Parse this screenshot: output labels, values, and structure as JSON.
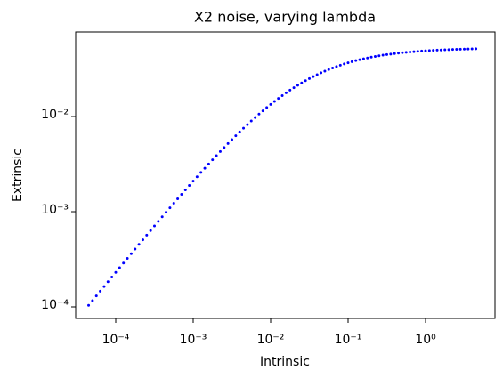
{
  "chart_data": {
    "type": "scatter",
    "title": "X2 noise, varying lambda",
    "xlabel": "Intrinsic",
    "ylabel": "Extrinsic",
    "xscale": "log",
    "yscale": "log",
    "color": "#0000ff",
    "xlim": [
      3.04e-05,
      7.88
    ],
    "ylim": [
      7.56e-05,
      0.0773
    ],
    "xticks": [
      {
        "value": 0.0001,
        "label": "10⁻⁴"
      },
      {
        "value": 0.001,
        "label": "10⁻³"
      },
      {
        "value": 0.01,
        "label": "10⁻²"
      },
      {
        "value": 0.1,
        "label": "10⁻¹"
      },
      {
        "value": 1,
        "label": "10⁰"
      }
    ],
    "yticks": [
      {
        "value": 0.0001,
        "label": "10⁻⁴"
      },
      {
        "value": 0.001,
        "label": "10⁻³"
      },
      {
        "value": 0.01,
        "label": "10⁻²"
      }
    ],
    "x": [
      4.467e-05,
      5.012e-05,
      5.623e-05,
      6.31e-05,
      7.079e-05,
      7.943e-05,
      8.913e-05,
      0.0001,
      0.0001122,
      0.0001259,
      0.0001413,
      0.0001585,
      0.0001778,
      0.0001995,
      0.0002239,
      0.0002512,
      0.0002818,
      0.0003162,
      0.0003548,
      0.0003981,
      0.0004467,
      0.0005012,
      0.0005623,
      0.000631,
      0.0007079,
      0.0007943,
      0.0008913,
      0.001,
      0.001122,
      0.001259,
      0.001413,
      0.001585,
      0.001778,
      0.001995,
      0.002239,
      0.002512,
      0.002818,
      0.003162,
      0.003548,
      0.003981,
      0.004467,
      0.005012,
      0.005623,
      0.00631,
      0.007079,
      0.007943,
      0.008913,
      0.01,
      0.01122,
      0.01259,
      0.01413,
      0.01585,
      0.01778,
      0.01995,
      0.02239,
      0.02512,
      0.02818,
      0.03162,
      0.03548,
      0.03981,
      0.04467,
      0.05012,
      0.05623,
      0.0631,
      0.07079,
      0.07943,
      0.08913,
      0.1,
      0.1122,
      0.1259,
      0.1413,
      0.1585,
      0.1778,
      0.1995,
      0.2239,
      0.2512,
      0.2818,
      0.3162,
      0.3548,
      0.3981,
      0.4467,
      0.5012,
      0.5623,
      0.631,
      0.7079,
      0.7943,
      0.8913,
      1,
      1.122,
      1.259,
      1.413,
      1.585,
      1.778,
      1.995,
      2.239,
      2.512,
      2.818,
      3.162,
      3.548,
      3.981,
      4.467
    ],
    "values": [
      0.0001038,
      0.0001164,
      0.0001304,
      0.0001462,
      0.0001638,
      0.0001835,
      0.0002056,
      0.0002303,
      0.0002579,
      0.0002889,
      0.0003235,
      0.000362,
      0.0004049,
      0.0004531,
      0.0005069,
      0.0005667,
      0.0006333,
      0.000708,
      0.000791,
      0.0008832,
      0.0009859,
      0.0011,
      0.0012265,
      0.001367,
      0.001523,
      0.001695,
      0.001886,
      0.002096,
      0.002329,
      0.002585,
      0.002866,
      0.003175,
      0.003512,
      0.003882,
      0.004287,
      0.004725,
      0.005203,
      0.005722,
      0.006282,
      0.006885,
      0.007535,
      0.008231,
      0.008974,
      0.009765,
      0.010604,
      0.01149,
      0.012427,
      0.013407,
      0.014435,
      0.0155,
      0.01661,
      0.01774,
      0.01891,
      0.0201,
      0.02133,
      0.02256,
      0.02379,
      0.02505,
      0.0263,
      0.02754,
      0.02877,
      0.02999,
      0.03117,
      0.03236,
      0.03349,
      0.03461,
      0.03567,
      0.03671,
      0.03771,
      0.03867,
      0.03959,
      0.04045,
      0.04123,
      0.04203,
      0.04278,
      0.04347,
      0.04412,
      0.04473,
      0.04531,
      0.04587,
      0.04638,
      0.04684,
      0.04727,
      0.04767,
      0.04804,
      0.04842,
      0.04876,
      0.04907,
      0.04934,
      0.04959,
      0.04985,
      0.05006,
      0.05026,
      0.05044,
      0.05065,
      0.0508,
      0.05094,
      0.05107,
      0.0512,
      0.05132,
      0.05145
    ]
  }
}
